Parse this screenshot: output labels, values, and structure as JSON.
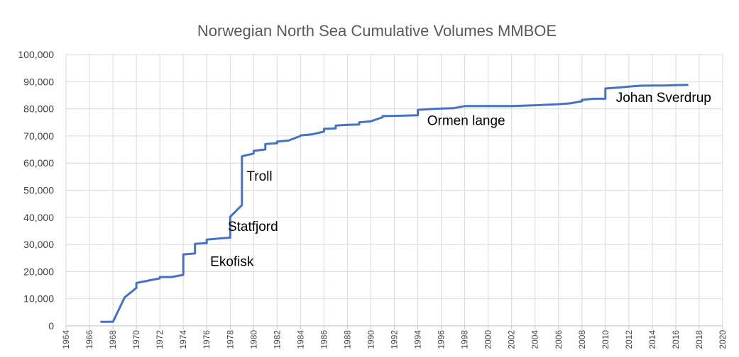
{
  "chart_data": {
    "type": "line",
    "title": "Norwegian North Sea Cumulative Volumes MMBOE",
    "xlabel": "",
    "ylabel": "",
    "xlim": [
      1964,
      2020
    ],
    "ylim": [
      0,
      100000
    ],
    "x_ticks": [
      "1964",
      "1966",
      "1968",
      "1970",
      "1972",
      "1974",
      "1976",
      "1978",
      "1980",
      "1982",
      "1984",
      "1986",
      "1988",
      "1990",
      "1992",
      "1994",
      "1996",
      "1998",
      "2000",
      "2002",
      "2004",
      "2006",
      "2008",
      "2010",
      "2012",
      "2014",
      "2016",
      "2018",
      "2020"
    ],
    "y_ticks": [
      "0",
      "10,000",
      "20,000",
      "30,000",
      "40,000",
      "50,000",
      "60,000",
      "70,000",
      "80,000",
      "90,000",
      "100,000"
    ],
    "grid": true,
    "line_color": "#4472c4",
    "series": [
      {
        "x": [
          1967,
          1968,
          1969,
          1970,
          1970,
          1972,
          1972,
          1973,
          1974,
          1974,
          1975,
          1975,
          1976,
          1976,
          1977,
          1978,
          1978,
          1979,
          1979,
          1980,
          1980,
          1981,
          1981,
          1982,
          1982,
          1983,
          1984,
          1984,
          1985,
          1986,
          1986,
          1987,
          1987,
          1988,
          1989,
          1989,
          1990,
          1991,
          1991,
          1992,
          1994,
          1994,
          1995,
          1996,
          1997,
          1998,
          2000,
          2002,
          2004,
          2005,
          2006,
          2007,
          2008,
          2008,
          2009,
          2010,
          2010,
          2011,
          2012,
          2013,
          2014,
          2015,
          2016,
          2017
        ],
        "y": [
          1500,
          1500,
          10500,
          14000,
          15800,
          17500,
          18000,
          18000,
          18800,
          26300,
          26700,
          30200,
          30500,
          31800,
          32200,
          32500,
          40200,
          44500,
          62500,
          63500,
          64500,
          65000,
          67000,
          67300,
          67900,
          68300,
          70000,
          70200,
          70600,
          71600,
          72600,
          72800,
          73800,
          74100,
          74200,
          75000,
          75400,
          76900,
          77300,
          77400,
          77600,
          79600,
          79900,
          80100,
          80200,
          81000,
          81000,
          81000,
          81300,
          81500,
          81700,
          82000,
          82800,
          83300,
          83700,
          83700,
          87500,
          87800,
          88200,
          88500,
          88600,
          88600,
          88700,
          88800
        ]
      }
    ],
    "annotations": [
      {
        "text": "Ekofisk",
        "x": 1976.3,
        "y": 22000
      },
      {
        "text": "Statfjord",
        "x": 1977.8,
        "y": 35000
      },
      {
        "text": "Troll",
        "x": 1979.4,
        "y": 53500
      },
      {
        "text": "Ormen lange",
        "x": 1994.8,
        "y": 74000
      },
      {
        "text": "Johan Sverdrup",
        "x": 2010.9,
        "y": 82500
      }
    ]
  }
}
